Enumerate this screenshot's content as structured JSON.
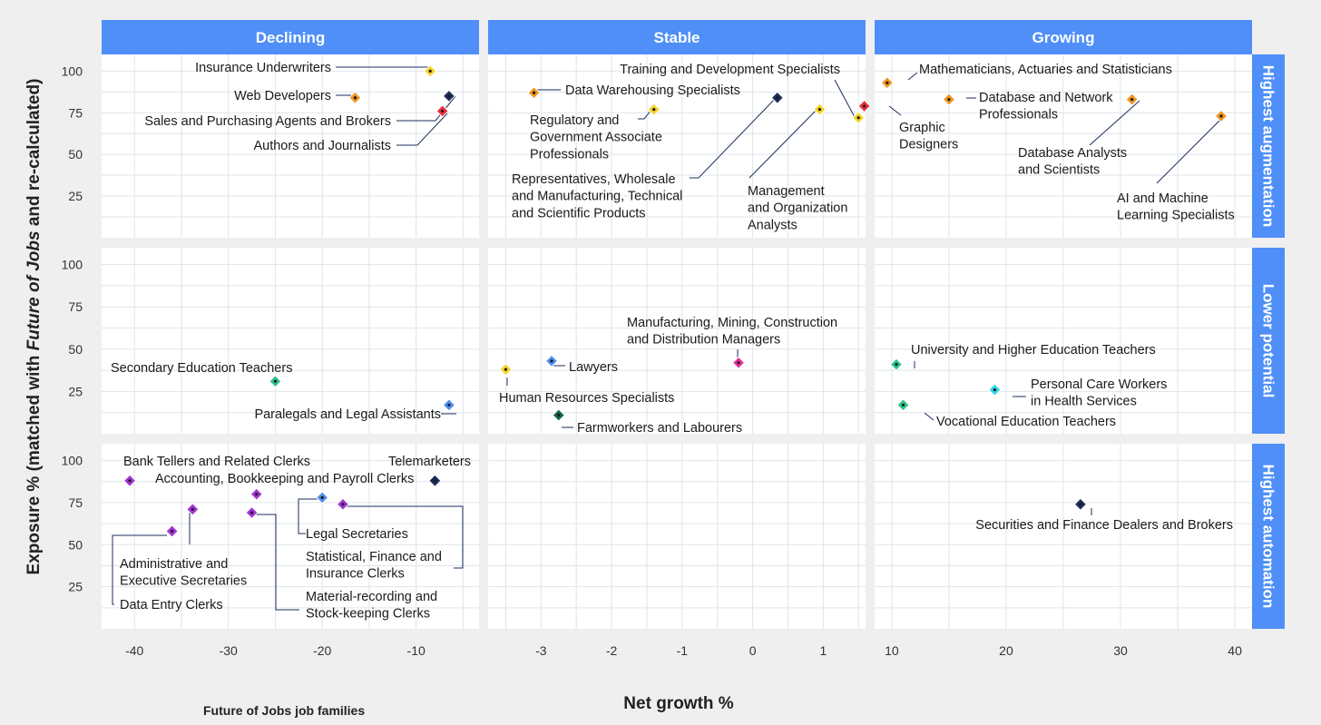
{
  "chart_data": {
    "type": "scatter",
    "ylabel_parts": [
      "Exposure % (matched with ",
      "Future of Jobs",
      "  and re-calculated)"
    ],
    "xlabel": "Net growth %",
    "legend_label": "Future of Jobs job families",
    "ylim": [
      0,
      110
    ],
    "yticks": [
      25,
      50,
      75,
      100
    ],
    "columns": [
      {
        "label": "Declining",
        "xlim": [
          -43.5,
          -3.3
        ],
        "xticks": [
          -40,
          -30,
          -20,
          -10
        ]
      },
      {
        "label": "Stable",
        "xlim": [
          -3.75,
          1.6
        ],
        "xticks": [
          -3,
          -2,
          -1,
          0,
          1
        ]
      },
      {
        "label": "Growing",
        "xlim": [
          8.5,
          41.5
        ],
        "xticks": [
          10,
          20,
          30,
          40
        ]
      }
    ],
    "rows": [
      {
        "label": "Highest augmentation"
      },
      {
        "label": "Lower potential"
      },
      {
        "label": "Highest automation"
      }
    ],
    "points": [
      {
        "name": "Insurance Underwriters",
        "col": 0,
        "row": 0,
        "x": -8.5,
        "y": 100,
        "color": "#f5d327"
      },
      {
        "name": "Web Developers",
        "col": 0,
        "row": 0,
        "x": -16.5,
        "y": 84,
        "color": "#f0951f"
      },
      {
        "name": "Sales and Purchasing Agents and Brokers",
        "col": 0,
        "row": 0,
        "x": -6.5,
        "y": 85,
        "color": "#1c2d5c"
      },
      {
        "name": "Authors and Journalists",
        "col": 0,
        "row": 0,
        "x": -7.2,
        "y": 76,
        "color": "#e8323c"
      },
      {
        "name": "Data Warehousing Specialists",
        "col": 1,
        "row": 0,
        "x": -3.1,
        "y": 87,
        "color": "#f0951f"
      },
      {
        "name": "Regulatory and Government Associate Professionals",
        "col": 1,
        "row": 0,
        "x": -1.4,
        "y": 77,
        "color": "#f5d327"
      },
      {
        "name": "Representatives, Wholesale and Manufacturing, Technical and Scientific Products",
        "col": 1,
        "row": 0,
        "x": 0.35,
        "y": 84,
        "color": "#1c2d5c"
      },
      {
        "name": "Management and Organization Analysts",
        "col": 1,
        "row": 0,
        "x": 0.95,
        "y": 77,
        "color": "#f5d327"
      },
      {
        "name": "Training and Development Specialists",
        "col": 1,
        "row": 0,
        "x": 1.5,
        "y": 72,
        "color": "#f5d327"
      },
      {
        "name": "Mathematicians, Actuaries and Statisticians",
        "col": 2,
        "row": 0,
        "x": 9.6,
        "y": 93,
        "color": "#f0951f"
      },
      {
        "name": "Graphic Designers",
        "col": 2,
        "row": 0,
        "x": 7.6,
        "y": 79,
        "color": "#e8323c"
      },
      {
        "name": "Database and Network Professionals",
        "col": 2,
        "row": 0,
        "x": 15,
        "y": 83,
        "color": "#f0951f"
      },
      {
        "name": "Database Analysts and Scientists",
        "col": 2,
        "row": 0,
        "x": 31,
        "y": 83,
        "color": "#f0951f"
      },
      {
        "name": "AI and Machine Learning Specialists",
        "col": 2,
        "row": 0,
        "x": 38.8,
        "y": 73,
        "color": "#f0951f"
      },
      {
        "name": "Secondary Education Teachers",
        "col": 0,
        "row": 1,
        "x": -25,
        "y": 31,
        "color": "#2dc48a"
      },
      {
        "name": "Paralegals and Legal Assistants",
        "col": 0,
        "row": 1,
        "x": -6.5,
        "y": 17,
        "color": "#4f8ff0"
      },
      {
        "name": "Lawyers",
        "col": 1,
        "row": 1,
        "x": -2.85,
        "y": 43,
        "color": "#4f8ff0"
      },
      {
        "name": "Human Resources Specialists",
        "col": 1,
        "row": 1,
        "x": -3.5,
        "y": 38,
        "color": "#f5d327"
      },
      {
        "name": "Manufacturing, Mining, Construction and Distribution Managers",
        "col": 1,
        "row": 1,
        "x": -0.2,
        "y": 42,
        "color": "#e8329b"
      },
      {
        "name": "Farmworkers and Labourers",
        "col": 1,
        "row": 1,
        "x": -2.75,
        "y": 11,
        "color": "#10664a"
      },
      {
        "name": "University and Higher Education Teachers",
        "col": 2,
        "row": 1,
        "x": 10.4,
        "y": 41,
        "color": "#2dc48a"
      },
      {
        "name": "Personal Care Workers in Health Services",
        "col": 2,
        "row": 1,
        "x": 19,
        "y": 26,
        "color": "#2fd6e6"
      },
      {
        "name": "Vocational Education Teachers",
        "col": 2,
        "row": 1,
        "x": 11,
        "y": 17,
        "color": "#2dc48a"
      },
      {
        "name": "Bank Tellers and Related Clerks",
        "col": 0,
        "row": 2,
        "x": -40.5,
        "y": 88,
        "color": "#a335d6"
      },
      {
        "name": "Accounting, Bookkeeping and Payroll Clerks",
        "col": 0,
        "row": 2,
        "x": -27,
        "y": 80,
        "color": "#a335d6"
      },
      {
        "name": "Telemarketers",
        "col": 0,
        "row": 2,
        "x": -8,
        "y": 88,
        "color": "#1c2d5c"
      },
      {
        "name": "Legal Secretaries",
        "col": 0,
        "row": 2,
        "x": -20,
        "y": 78,
        "color": "#4f8ff0"
      },
      {
        "name": "Statistical, Finance and Insurance Clerks",
        "col": 0,
        "row": 2,
        "x": -17.8,
        "y": 74,
        "color": "#a335d6"
      },
      {
        "name": "Administrative and Executive Secretaries",
        "col": 0,
        "row": 2,
        "x": -33.8,
        "y": 71,
        "color": "#a335d6"
      },
      {
        "name": "Data Entry Clerks",
        "col": 0,
        "row": 2,
        "x": -36,
        "y": 58,
        "color": "#a335d6"
      },
      {
        "name": "Material-recording and Stock-keeping Clerks",
        "col": 0,
        "row": 2,
        "x": -27.5,
        "y": 69,
        "color": "#a335d6"
      },
      {
        "name": "Securities and Finance Dealers and Brokers",
        "col": 2,
        "row": 2,
        "x": 26.5,
        "y": 74,
        "color": "#1c2d5c"
      }
    ]
  },
  "labels": [
    {
      "lines": [
        "Insurance Underwriters"
      ]
    },
    {
      "lines": [
        "Web Developers"
      ]
    },
    {
      "lines": [
        "Sales and Purchasing Agents and Brokers"
      ]
    },
    {
      "lines": [
        "Authors and Journalists"
      ]
    },
    {
      "lines": [
        "Data Warehousing Specialists"
      ]
    },
    {
      "lines": [
        "Regulatory and",
        "Government Associate",
        "Professionals"
      ]
    },
    {
      "lines": [
        "Representatives, Wholesale",
        "and Manufacturing, Technical",
        "and Scientific Products"
      ]
    },
    {
      "lines": [
        "Management",
        "and Organization",
        "Analysts"
      ]
    },
    {
      "lines": [
        "Training and Development Specialists"
      ]
    },
    {
      "lines": [
        "Mathematicians, Actuaries and Statisticians"
      ]
    },
    {
      "lines": [
        "Graphic",
        "Designers"
      ]
    },
    {
      "lines": [
        "Database and Network",
        "Professionals"
      ]
    },
    {
      "lines": [
        "Database Analysts",
        "and Scientists"
      ]
    },
    {
      "lines": [
        "AI and Machine",
        "Learning Specialists"
      ]
    },
    {
      "lines": [
        "Secondary Education Teachers"
      ]
    },
    {
      "lines": [
        "Paralegals and Legal Assistants"
      ]
    },
    {
      "lines": [
        "Lawyers"
      ]
    },
    {
      "lines": [
        "Human Resources Specialists"
      ]
    },
    {
      "lines": [
        "Manufacturing, Mining, Construction",
        "and Distribution Managers"
      ]
    },
    {
      "lines": [
        "Farmworkers and Labourers"
      ]
    },
    {
      "lines": [
        "University and Higher Education Teachers"
      ]
    },
    {
      "lines": [
        "Personal Care Workers",
        "in Health Services"
      ]
    },
    {
      "lines": [
        "Vocational Education Teachers"
      ]
    },
    {
      "lines": [
        "Bank Tellers and Related Clerks"
      ]
    },
    {
      "lines": [
        "Accounting, Bookkeeping and Payroll Clerks"
      ]
    },
    {
      "lines": [
        "Telemarketers"
      ]
    },
    {
      "lines": [
        "Legal Secretaries"
      ]
    },
    {
      "lines": [
        "Statistical, Finance and",
        "Insurance Clerks"
      ]
    },
    {
      "lines": [
        "Administrative and",
        "Executive Secretaries"
      ]
    },
    {
      "lines": [
        "Data Entry Clerks"
      ]
    },
    {
      "lines": [
        "Material-recording and",
        "Stock-keeping Clerks"
      ]
    },
    {
      "lines": [
        "Securities and Finance Dealers and Brokers"
      ]
    }
  ]
}
